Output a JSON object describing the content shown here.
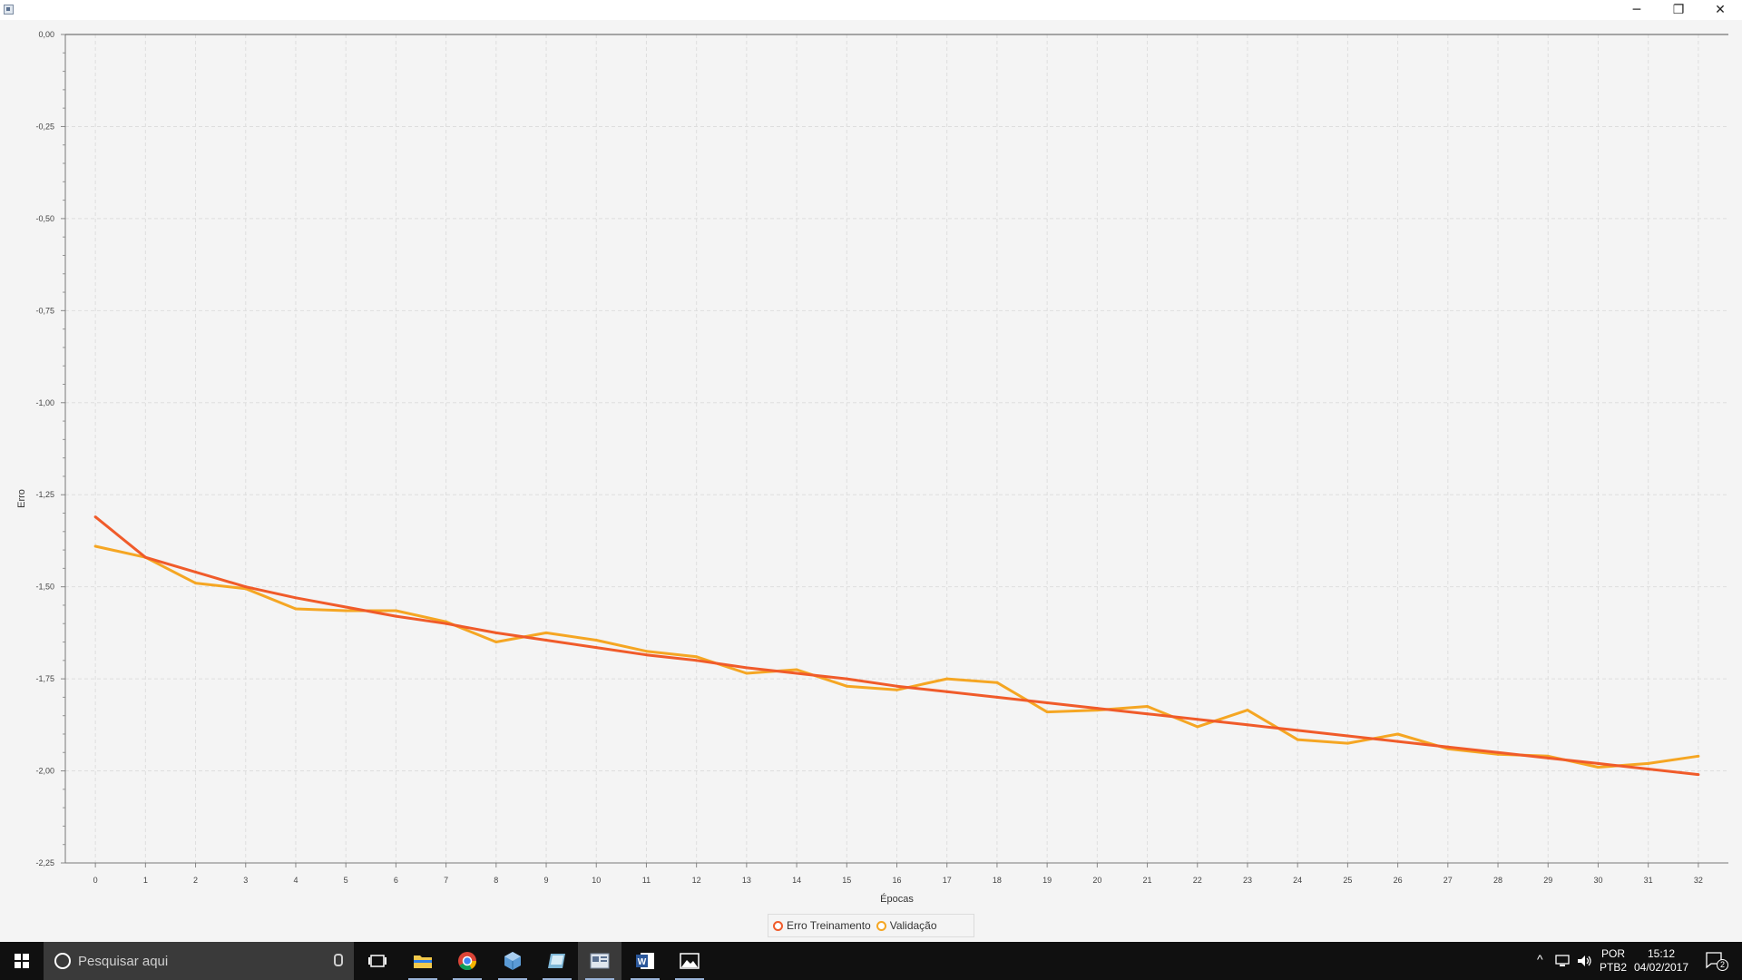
{
  "window": {
    "app_icon": "app-window-icon",
    "minimize_glyph": "─",
    "restore_glyph": "❐",
    "close_glyph": "✕"
  },
  "chart_data": {
    "type": "line",
    "title": "",
    "xlabel": "Épocas",
    "ylabel": "Erro",
    "x": [
      0,
      1,
      2,
      3,
      4,
      5,
      6,
      7,
      8,
      9,
      10,
      11,
      12,
      13,
      14,
      15,
      16,
      17,
      18,
      19,
      20,
      21,
      22,
      23,
      24,
      25,
      26,
      27,
      28,
      29,
      30,
      31,
      32
    ],
    "xlim": [
      -0.6,
      32.6
    ],
    "ylim": [
      -2.25,
      0.0
    ],
    "y_ticks": [
      "0,00",
      "-0,25",
      "-0,50",
      "-0,75",
      "-1,00",
      "-1,25",
      "-1,50",
      "-1,75",
      "-2,00",
      "-2,25"
    ],
    "y_tick_values": [
      0.0,
      -0.25,
      -0.5,
      -0.75,
      -1.0,
      -1.25,
      -1.5,
      -1.75,
      -2.0,
      -2.25
    ],
    "x_ticks": [
      "0",
      "1",
      "2",
      "3",
      "4",
      "5",
      "6",
      "7",
      "8",
      "9",
      "10",
      "11",
      "12",
      "13",
      "14",
      "15",
      "16",
      "17",
      "18",
      "19",
      "20",
      "21",
      "22",
      "23",
      "24",
      "25",
      "26",
      "27",
      "28",
      "29",
      "30",
      "31",
      "32"
    ],
    "grid": true,
    "legend_position": "bottom-center",
    "series": [
      {
        "name": "Erro Treinamento",
        "color": "#f05b2a",
        "values": [
          -1.31,
          -1.42,
          -1.46,
          -1.5,
          -1.53,
          -1.555,
          -1.58,
          -1.6,
          -1.625,
          -1.645,
          -1.665,
          -1.685,
          -1.7,
          -1.72,
          -1.735,
          -1.75,
          -1.77,
          -1.785,
          -1.8,
          -1.815,
          -1.83,
          -1.845,
          -1.86,
          -1.875,
          -1.89,
          -1.905,
          -1.92,
          -1.935,
          -1.95,
          -1.965,
          -1.98,
          -1.995,
          -2.01
        ]
      },
      {
        "name": "Validação",
        "color": "#f5a623",
        "values": [
          -1.39,
          -1.42,
          -1.49,
          -1.505,
          -1.56,
          -1.565,
          -1.565,
          -1.595,
          -1.65,
          -1.625,
          -1.645,
          -1.675,
          -1.69,
          -1.735,
          -1.725,
          -1.77,
          -1.78,
          -1.75,
          -1.76,
          -1.84,
          -1.835,
          -1.825,
          -1.88,
          -1.835,
          -1.915,
          -1.925,
          -1.9,
          -1.94,
          -1.955,
          -1.96,
          -1.99,
          -1.98,
          -1.96
        ]
      }
    ]
  },
  "taskbar": {
    "start_icon": "windows-start-icon",
    "search_placeholder": "Pesquisar aqui",
    "apps": [
      "task-view-icon",
      "file-explorer-icon",
      "chrome-icon",
      "app-cube-icon",
      "app-book-icon",
      "java-app-icon",
      "word-icon",
      "photos-icon"
    ],
    "language_line1": "POR",
    "language_line2": "PTB2",
    "time": "15:12",
    "date": "04/02/2017",
    "notification_count": "2",
    "tray_chevron": "^"
  }
}
